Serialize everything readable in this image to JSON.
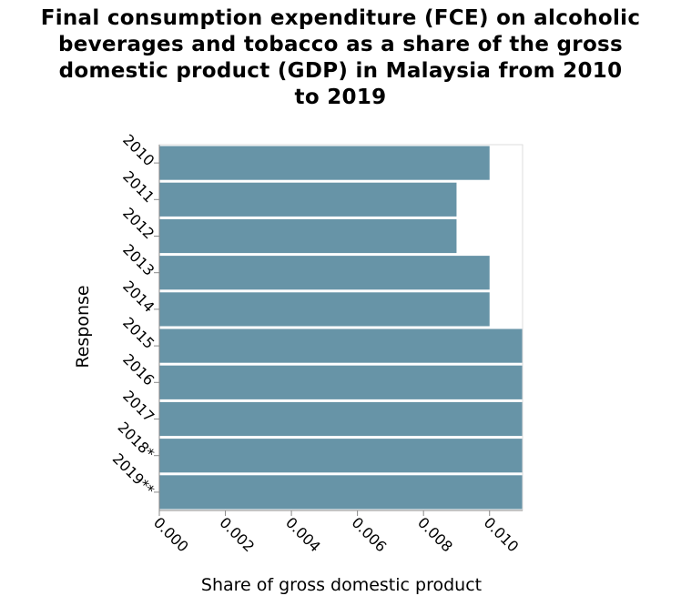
{
  "chart_data": {
    "type": "bar",
    "orientation": "horizontal",
    "title_lines": [
      "Final consumption expenditure (FCE) on alcoholic",
      "beverages and tobacco as a share of the gross",
      "domestic product (GDP) in Malaysia from 2010",
      "to 2019"
    ],
    "xlabel": "Share of gross domestic product",
    "ylabel": "Response",
    "categories": [
      "2010",
      "2011",
      "2012",
      "2013",
      "2014",
      "2015",
      "2016",
      "2017",
      "2018*",
      "2019**"
    ],
    "values": [
      0.01,
      0.009,
      0.009,
      0.01,
      0.01,
      0.011,
      0.011,
      0.011,
      0.011,
      0.011
    ],
    "xlim": [
      0,
      0.011
    ],
    "xticks": [
      "0.000",
      "0.002",
      "0.004",
      "0.006",
      "0.008",
      "0.010"
    ],
    "xtick_values": [
      0,
      0.002,
      0.004,
      0.006,
      0.008,
      0.01
    ],
    "grid": false,
    "bar_color": "#6794a7"
  }
}
